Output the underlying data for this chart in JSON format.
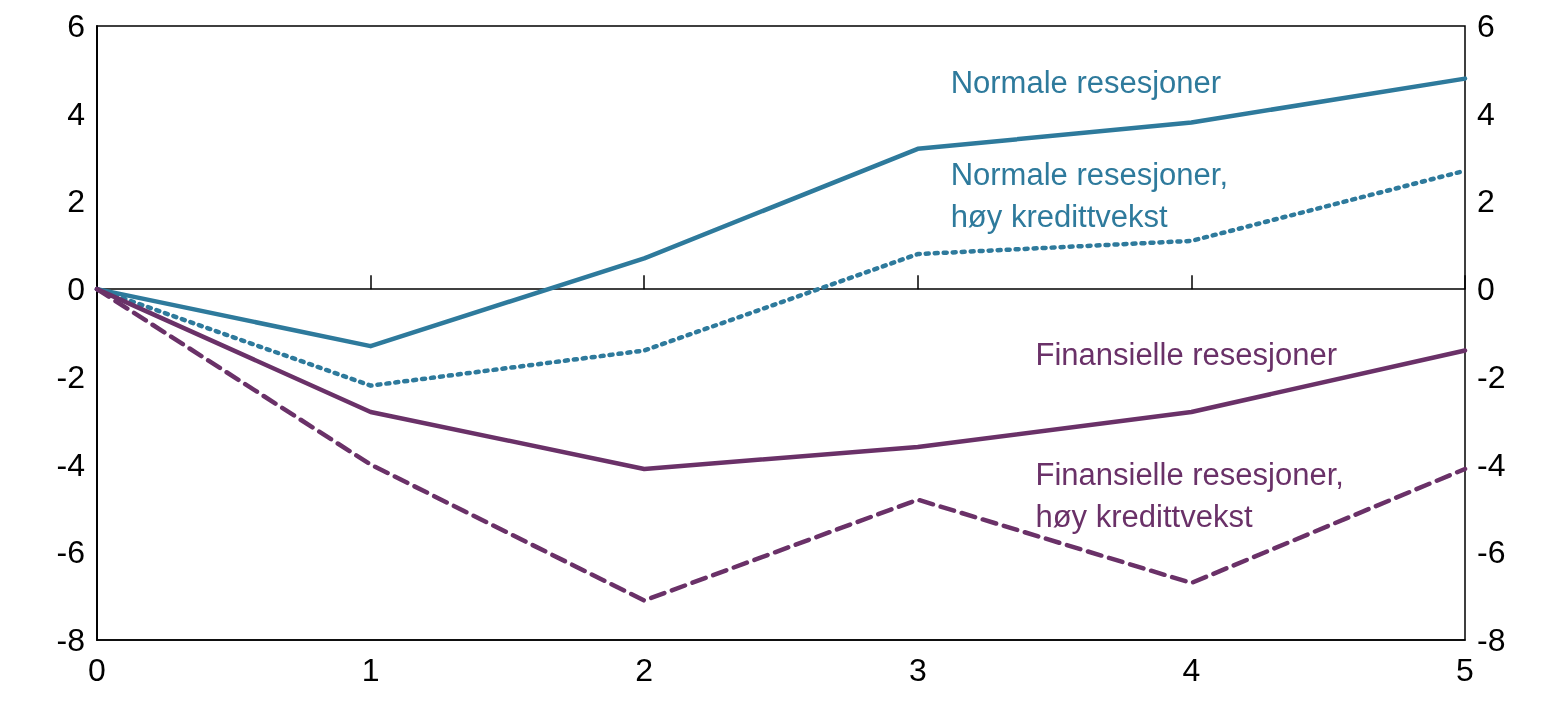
{
  "chart_data": {
    "type": "line",
    "x": [
      0,
      1,
      2,
      3,
      4,
      5
    ],
    "xlim": [
      0,
      5
    ],
    "xticks": [
      0,
      1,
      2,
      3,
      4,
      5
    ],
    "ylim": [
      -8,
      6
    ],
    "yticks": [
      -8,
      -6,
      -4,
      -2,
      0,
      2,
      4,
      6
    ],
    "y2lim": [
      -8,
      6
    ],
    "y2ticks": [
      -8,
      -6,
      -4,
      -2,
      0,
      2,
      4,
      6
    ],
    "legend": false,
    "marker": "none",
    "series": [
      {
        "name": "Normale resesjoner",
        "color": "#2e7a9c",
        "line_style": "solid",
        "values": [
          0,
          -1.3,
          0.7,
          3.2,
          3.8,
          4.8
        ]
      },
      {
        "name": "Normale resesjoner,\nhøy kredittvekst",
        "color": "#2e7a9c",
        "line_style": "dotted",
        "values": [
          0,
          -2.2,
          -1.4,
          0.8,
          1.1,
          2.7
        ]
      },
      {
        "name": "Finansielle resesjoner",
        "color": "#6a3168",
        "line_style": "solid",
        "values": [
          0,
          -2.8,
          -4.1,
          -3.6,
          -2.8,
          -1.4
        ]
      },
      {
        "name": "Finansielle resesjoner,\nhøy kredittvekst",
        "color": "#6a3168",
        "line_style": "dashed",
        "values": [
          0,
          -4.0,
          -7.1,
          -4.8,
          -6.7,
          -4.1
        ]
      }
    ]
  }
}
